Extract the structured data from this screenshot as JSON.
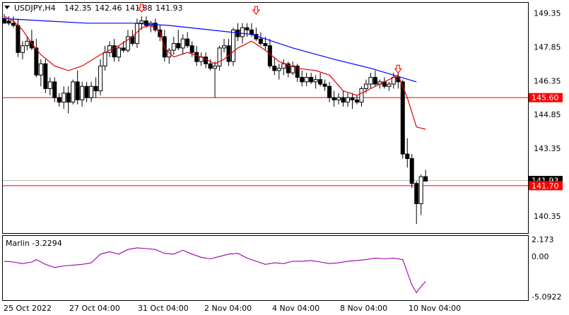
{
  "chart_data": [
    {
      "type": "candlestick",
      "symbol": "USDJPY,H4",
      "ohlc_header": [
        "142.35",
        "142.46",
        "141.88",
        "141.93"
      ],
      "y_ticks": [
        "149.35",
        "147.85",
        "146.35",
        "144.85",
        "143.35",
        "140.35"
      ],
      "x_ticks": [
        "25 Oct 2022",
        "27 Oct 04:00",
        "31 Oct 04:00",
        "2 Nov 04:00",
        "4 Nov 04:00",
        "8 Nov 04:00",
        "10 Nov 04:00"
      ],
      "ylim": [
        139.6,
        149.8
      ],
      "candles": [
        [
          149.1,
          149.3,
          148.9,
          148.9
        ],
        [
          149.0,
          149.2,
          148.8,
          148.9
        ],
        [
          148.9,
          149.2,
          148.7,
          148.8
        ],
        [
          148.8,
          149.1,
          147.4,
          147.6
        ],
        [
          147.6,
          148.1,
          147.3,
          147.9
        ],
        [
          147.9,
          148.3,
          147.7,
          148.1
        ],
        [
          148.1,
          148.6,
          147.7,
          147.8
        ],
        [
          147.8,
          148.2,
          146.5,
          146.6
        ],
        [
          146.6,
          147.3,
          146.1,
          147.1
        ],
        [
          147.1,
          147.3,
          145.8,
          146.0
        ],
        [
          146.0,
          146.5,
          145.7,
          146.3
        ],
        [
          146.3,
          146.5,
          145.4,
          145.6
        ],
        [
          145.6,
          145.8,
          145.2,
          145.4
        ],
        [
          145.4,
          146.1,
          145.1,
          145.8
        ],
        [
          145.8,
          146.1,
          144.9,
          145.4
        ],
        [
          145.4,
          146.4,
          145.3,
          146.3
        ],
        [
          146.3,
          146.8,
          145.3,
          145.5
        ],
        [
          145.5,
          146.3,
          145.2,
          146.1
        ],
        [
          146.1,
          146.3,
          145.4,
          145.6
        ],
        [
          145.6,
          146.3,
          145.4,
          146.1
        ],
        [
          146.1,
          146.5,
          145.6,
          145.9
        ],
        [
          145.9,
          147.3,
          145.7,
          147.0
        ],
        [
          147.0,
          147.9,
          146.8,
          147.6
        ],
        [
          147.6,
          148.1,
          147.4,
          147.9
        ],
        [
          147.9,
          148.2,
          147.2,
          147.4
        ],
        [
          147.4,
          147.9,
          147.2,
          147.8
        ],
        [
          147.8,
          148.1,
          147.6,
          147.7
        ],
        [
          147.7,
          148.6,
          147.6,
          148.3
        ],
        [
          148.3,
          148.6,
          147.9,
          148.0
        ],
        [
          148.0,
          149.1,
          147.8,
          148.9
        ],
        [
          148.9,
          149.2,
          148.6,
          149.0
        ],
        [
          149.0,
          149.2,
          148.7,
          148.8
        ],
        [
          148.8,
          149.0,
          148.5,
          148.9
        ],
        [
          148.9,
          149.1,
          148.5,
          148.6
        ],
        [
          148.6,
          148.8,
          148.1,
          148.3
        ],
        [
          148.3,
          148.6,
          147.2,
          147.4
        ],
        [
          147.4,
          147.8,
          147.1,
          147.7
        ],
        [
          147.7,
          148.3,
          147.5,
          148.0
        ],
        [
          148.0,
          148.6,
          147.7,
          147.8
        ],
        [
          147.8,
          148.4,
          147.5,
          148.2
        ],
        [
          148.2,
          148.5,
          147.8,
          147.9
        ],
        [
          147.9,
          148.1,
          147.4,
          147.6
        ],
        [
          147.6,
          147.9,
          147.0,
          147.2
        ],
        [
          147.2,
          147.6,
          147.0,
          147.4
        ],
        [
          147.4,
          147.6,
          146.9,
          147.1
        ],
        [
          147.1,
          147.3,
          146.8,
          146.9
        ],
        [
          146.9,
          147.2,
          145.6,
          147.0
        ],
        [
          147.0,
          147.9,
          146.8,
          147.8
        ],
        [
          147.8,
          148.2,
          147.6,
          147.9
        ],
        [
          147.9,
          148.2,
          147.0,
          147.2
        ],
        [
          147.2,
          148.7,
          147.0,
          148.6
        ],
        [
          148.6,
          148.9,
          148.1,
          148.3
        ],
        [
          148.3,
          148.9,
          148.0,
          148.7
        ],
        [
          148.7,
          148.9,
          148.3,
          148.6
        ],
        [
          148.6,
          148.9,
          148.3,
          148.4
        ],
        [
          148.4,
          148.7,
          148.1,
          148.2
        ],
        [
          148.2,
          148.5,
          147.9,
          148.0
        ],
        [
          148.0,
          148.3,
          147.7,
          147.9
        ],
        [
          147.9,
          148.2,
          146.9,
          147.0
        ],
        [
          147.0,
          147.4,
          146.6,
          146.8
        ],
        [
          146.8,
          147.1,
          146.4,
          146.9
        ],
        [
          146.9,
          147.3,
          146.6,
          147.1
        ],
        [
          147.1,
          147.2,
          146.5,
          146.7
        ],
        [
          146.7,
          147.2,
          146.6,
          147.0
        ],
        [
          147.0,
          147.1,
          146.3,
          146.5
        ],
        [
          146.5,
          146.8,
          146.1,
          146.3
        ],
        [
          146.3,
          146.7,
          146.1,
          146.5
        ],
        [
          146.5,
          146.7,
          146.2,
          146.3
        ],
        [
          146.3,
          146.6,
          146.0,
          146.4
        ],
        [
          146.4,
          146.7,
          146.1,
          146.2
        ],
        [
          146.2,
          146.4,
          145.9,
          146.1
        ],
        [
          146.1,
          146.3,
          145.4,
          145.6
        ],
        [
          145.6,
          145.9,
          145.2,
          145.5
        ],
        [
          145.5,
          145.8,
          145.3,
          145.6
        ],
        [
          145.6,
          145.9,
          145.2,
          145.4
        ],
        [
          145.4,
          145.8,
          145.2,
          145.6
        ],
        [
          145.6,
          145.8,
          145.1,
          145.5
        ],
        [
          145.5,
          145.7,
          145.3,
          145.4
        ],
        [
          145.4,
          146.1,
          145.2,
          146.0
        ],
        [
          146.0,
          146.4,
          145.8,
          146.2
        ],
        [
          146.2,
          146.7,
          146.0,
          146.5
        ],
        [
          146.5,
          146.8,
          146.1,
          146.2
        ],
        [
          146.2,
          146.4,
          146.0,
          146.3
        ],
        [
          146.3,
          146.5,
          146.0,
          146.1
        ],
        [
          146.1,
          146.3,
          145.9,
          146.2
        ],
        [
          146.2,
          146.7,
          146.0,
          146.5
        ],
        [
          146.5,
          146.7,
          146.0,
          146.3
        ],
        [
          146.3,
          146.4,
          142.9,
          143.1
        ],
        [
          143.1,
          143.8,
          142.5,
          142.9
        ],
        [
          142.9,
          143.1,
          141.6,
          141.8
        ],
        [
          141.8,
          141.9,
          140.0,
          140.9
        ],
        [
          140.9,
          142.2,
          140.4,
          142.1
        ],
        [
          142.1,
          142.4,
          141.9,
          141.9
        ]
      ],
      "series": [
        {
          "type": "line",
          "color": "#0000ff",
          "values": [
            [
              0,
              149.1
            ],
            [
              9,
              149.0
            ],
            [
              18,
              148.9
            ],
            [
              28,
              148.9
            ],
            [
              36,
              148.8
            ],
            [
              45,
              148.6
            ],
            [
              54,
              148.4
            ],
            [
              63,
              147.8
            ],
            [
              72,
              147.3
            ],
            [
              80,
              146.9
            ],
            [
              85,
              146.6
            ],
            [
              90,
              146.3
            ]
          ]
        },
        {
          "type": "line",
          "color": "#dd0000",
          "values": [
            [
              0,
              149.2
            ],
            [
              2,
              149.0
            ],
            [
              4,
              148.6
            ],
            [
              6,
              148.0
            ],
            [
              8,
              147.5
            ],
            [
              11,
              147.0
            ],
            [
              14,
              146.8
            ],
            [
              17,
              147.0
            ],
            [
              21,
              147.5
            ],
            [
              25,
              147.9
            ],
            [
              28,
              148.3
            ],
            [
              30,
              148.7
            ],
            [
              32,
              148.8
            ],
            [
              34,
              148.5
            ],
            [
              35,
              147.8
            ],
            [
              37,
              147.4
            ],
            [
              40,
              147.6
            ],
            [
              43,
              147.4
            ],
            [
              46,
              147.1
            ],
            [
              48,
              147.3
            ],
            [
              51,
              147.8
            ],
            [
              54,
              148.1
            ],
            [
              57,
              147.7
            ],
            [
              60,
              147.2
            ],
            [
              64,
              146.9
            ],
            [
              68,
              146.8
            ],
            [
              71,
              146.6
            ],
            [
              74,
              145.9
            ],
            [
              77,
              145.7
            ],
            [
              80,
              146.0
            ],
            [
              83,
              146.3
            ],
            [
              86,
              146.6
            ],
            [
              88,
              145.6
            ],
            [
              90,
              144.3
            ],
            [
              92,
              144.2
            ]
          ]
        }
      ],
      "hlines": [
        {
          "value": 145.6,
          "label": "145.60",
          "color": "#ff0000"
        },
        {
          "value": 141.7,
          "label": "141.70",
          "color": "#ff0000"
        }
      ],
      "price_marker": {
        "value": 141.93,
        "label": "141.93"
      },
      "arrows": [
        {
          "index": 30,
          "price": 149.55,
          "direction": "down",
          "color": "#ff0000"
        },
        {
          "index": 55,
          "price": 149.45,
          "direction": "down",
          "color": "#ff0000"
        },
        {
          "index": 86,
          "price": 146.85,
          "direction": "down",
          "color": "#ff0000"
        }
      ]
    },
    {
      "type": "line",
      "title": "Marlin -3.2294",
      "y_ticks": [
        "2.173",
        "0.00",
        "-5.0922"
      ],
      "ylim": [
        -5.55,
        2.62
      ],
      "values": [
        [
          0,
          -0.6
        ],
        [
          2,
          -0.7
        ],
        [
          4,
          -0.9
        ],
        [
          6,
          -0.7
        ],
        [
          7,
          -0.4
        ],
        [
          9,
          -1.0
        ],
        [
          11,
          -1.4
        ],
        [
          13,
          -1.2
        ],
        [
          15,
          -1.1
        ],
        [
          17,
          -1.0
        ],
        [
          19,
          -0.8
        ],
        [
          21,
          0.3
        ],
        [
          23,
          0.6
        ],
        [
          25,
          0.3
        ],
        [
          27,
          0.9
        ],
        [
          29,
          1.1
        ],
        [
          31,
          1.0
        ],
        [
          33,
          0.9
        ],
        [
          35,
          0.4
        ],
        [
          37,
          0.3
        ],
        [
          39,
          0.8
        ],
        [
          41,
          0.3
        ],
        [
          43,
          -0.1
        ],
        [
          45,
          -0.3
        ],
        [
          47,
          0.0
        ],
        [
          49,
          0.3
        ],
        [
          51,
          0.4
        ],
        [
          53,
          -0.2
        ],
        [
          55,
          -0.6
        ],
        [
          57,
          -1.0
        ],
        [
          59,
          -0.8
        ],
        [
          61,
          -0.9
        ],
        [
          63,
          -0.6
        ],
        [
          65,
          -0.6
        ],
        [
          67,
          -0.5
        ],
        [
          69,
          -0.7
        ],
        [
          71,
          -0.9
        ],
        [
          73,
          -0.8
        ],
        [
          75,
          -0.6
        ],
        [
          77,
          -0.5
        ],
        [
          79,
          -0.4
        ],
        [
          81,
          -0.2
        ],
        [
          83,
          -0.3
        ],
        [
          85,
          -0.2
        ],
        [
          87,
          -0.4
        ],
        [
          88,
          -2.0
        ],
        [
          89,
          -3.6
        ],
        [
          90,
          -4.6
        ],
        [
          91,
          -3.8
        ],
        [
          92,
          -3.2
        ]
      ],
      "color": "#9900aa"
    }
  ]
}
